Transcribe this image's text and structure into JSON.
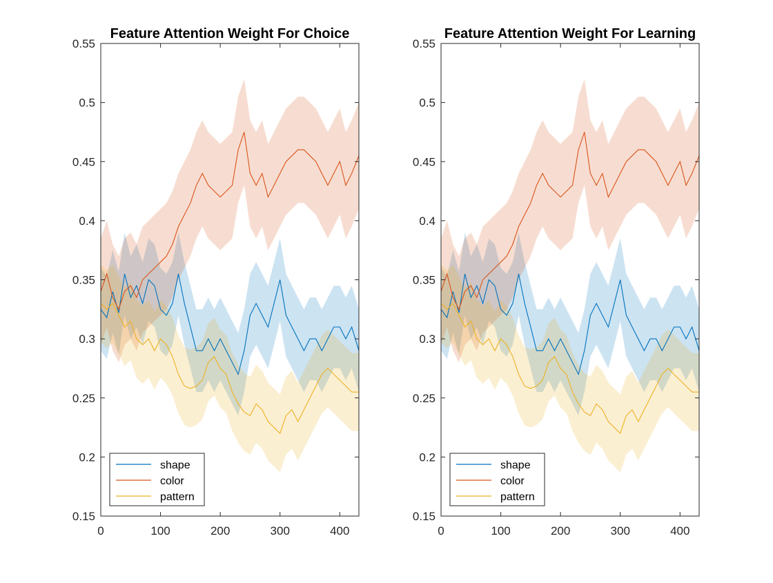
{
  "colors": {
    "shape": "#0072BD",
    "color": "#D95319",
    "pattern": "#EDB120",
    "axis": "#262626",
    "background": "#ffffff"
  },
  "chart_data": [
    {
      "type": "line",
      "title": "Feature Attention Weight For Choice",
      "xlabel": "",
      "ylabel": "",
      "xlim": [
        0,
        432
      ],
      "ylim": [
        0.15,
        0.55
      ],
      "x_ticks": [
        0,
        100,
        200,
        300,
        400
      ],
      "x_tick_labels": [
        "0",
        "100",
        "200",
        "300",
        "400"
      ],
      "y_ticks": [
        0.15,
        0.2,
        0.25,
        0.3,
        0.35,
        0.4,
        0.45,
        0.5,
        0.55
      ],
      "y_tick_labels": [
        "0.15",
        "0.2",
        "0.25",
        "0.3",
        "0.35",
        "0.4",
        "0.45",
        "0.5",
        "0.55"
      ],
      "grid": false,
      "legend_position": "bottom-left",
      "series": [
        {
          "name": "shape",
          "color": "#0072BD",
          "x": [
            0,
            10,
            20,
            30,
            40,
            50,
            60,
            70,
            80,
            90,
            100,
            110,
            120,
            130,
            140,
            150,
            160,
            170,
            180,
            190,
            200,
            210,
            220,
            230,
            240,
            250,
            260,
            270,
            280,
            290,
            300,
            310,
            320,
            330,
            340,
            350,
            360,
            370,
            380,
            390,
            400,
            410,
            420,
            432
          ],
          "y": [
            0.325,
            0.318,
            0.34,
            0.322,
            0.355,
            0.335,
            0.345,
            0.33,
            0.35,
            0.345,
            0.325,
            0.32,
            0.33,
            0.355,
            0.33,
            0.31,
            0.29,
            0.29,
            0.3,
            0.29,
            0.3,
            0.29,
            0.28,
            0.27,
            0.29,
            0.32,
            0.33,
            0.32,
            0.31,
            0.33,
            0.35,
            0.32,
            0.31,
            0.3,
            0.29,
            0.3,
            0.3,
            0.29,
            0.3,
            0.31,
            0.31,
            0.3,
            0.31,
            0.29
          ],
          "ci_half_width": 0.035
        },
        {
          "name": "color",
          "color": "#D95319",
          "x": [
            0,
            10,
            20,
            30,
            40,
            50,
            60,
            70,
            80,
            90,
            100,
            110,
            120,
            130,
            140,
            150,
            160,
            170,
            180,
            190,
            200,
            210,
            220,
            230,
            240,
            250,
            260,
            270,
            280,
            290,
            300,
            310,
            320,
            330,
            340,
            350,
            360,
            370,
            380,
            390,
            400,
            410,
            420,
            432
          ],
          "y": [
            0.34,
            0.355,
            0.335,
            0.325,
            0.34,
            0.345,
            0.335,
            0.35,
            0.355,
            0.36,
            0.365,
            0.37,
            0.38,
            0.395,
            0.405,
            0.415,
            0.43,
            0.44,
            0.43,
            0.425,
            0.42,
            0.425,
            0.43,
            0.46,
            0.475,
            0.44,
            0.43,
            0.44,
            0.42,
            0.43,
            0.44,
            0.45,
            0.455,
            0.46,
            0.46,
            0.455,
            0.45,
            0.44,
            0.43,
            0.44,
            0.45,
            0.43,
            0.44,
            0.455
          ],
          "ci_half_width": 0.045
        },
        {
          "name": "pattern",
          "color": "#EDB120",
          "x": [
            0,
            10,
            20,
            30,
            40,
            50,
            60,
            70,
            80,
            90,
            100,
            110,
            120,
            130,
            140,
            150,
            160,
            170,
            180,
            190,
            200,
            210,
            220,
            230,
            240,
            250,
            260,
            270,
            280,
            290,
            300,
            310,
            320,
            330,
            340,
            350,
            360,
            370,
            380,
            390,
            400,
            410,
            420,
            432
          ],
          "y": [
            0.33,
            0.325,
            0.33,
            0.32,
            0.31,
            0.315,
            0.3,
            0.295,
            0.3,
            0.29,
            0.3,
            0.295,
            0.285,
            0.27,
            0.26,
            0.258,
            0.26,
            0.265,
            0.28,
            0.285,
            0.275,
            0.27,
            0.255,
            0.245,
            0.238,
            0.235,
            0.245,
            0.24,
            0.23,
            0.225,
            0.22,
            0.235,
            0.24,
            0.23,
            0.24,
            0.25,
            0.26,
            0.27,
            0.275,
            0.27,
            0.265,
            0.26,
            0.255,
            0.255
          ],
          "ci_half_width": 0.033
        }
      ]
    },
    {
      "type": "line",
      "title": "Feature Attention Weight For Learning",
      "xlabel": "",
      "ylabel": "",
      "xlim": [
        0,
        432
      ],
      "ylim": [
        0.15,
        0.55
      ],
      "x_ticks": [
        0,
        100,
        200,
        300,
        400
      ],
      "x_tick_labels": [
        "0",
        "100",
        "200",
        "300",
        "400"
      ],
      "y_ticks": [
        0.15,
        0.2,
        0.25,
        0.3,
        0.35,
        0.4,
        0.45,
        0.5,
        0.55
      ],
      "y_tick_labels": [
        "0.15",
        "0.2",
        "0.25",
        "0.3",
        "0.35",
        "0.4",
        "0.45",
        "0.5",
        "0.55"
      ],
      "grid": false,
      "legend_position": "bottom-left",
      "series": [
        {
          "name": "shape",
          "color": "#0072BD",
          "x": [
            0,
            10,
            20,
            30,
            40,
            50,
            60,
            70,
            80,
            90,
            100,
            110,
            120,
            130,
            140,
            150,
            160,
            170,
            180,
            190,
            200,
            210,
            220,
            230,
            240,
            250,
            260,
            270,
            280,
            290,
            300,
            310,
            320,
            330,
            340,
            350,
            360,
            370,
            380,
            390,
            400,
            410,
            420,
            432
          ],
          "y": [
            0.325,
            0.318,
            0.34,
            0.322,
            0.355,
            0.335,
            0.345,
            0.33,
            0.35,
            0.345,
            0.325,
            0.32,
            0.33,
            0.355,
            0.33,
            0.31,
            0.29,
            0.29,
            0.3,
            0.29,
            0.3,
            0.29,
            0.28,
            0.27,
            0.29,
            0.32,
            0.33,
            0.32,
            0.31,
            0.33,
            0.35,
            0.32,
            0.31,
            0.3,
            0.29,
            0.3,
            0.3,
            0.29,
            0.3,
            0.31,
            0.31,
            0.3,
            0.31,
            0.29
          ],
          "ci_half_width": 0.035
        },
        {
          "name": "color",
          "color": "#D95319",
          "x": [
            0,
            10,
            20,
            30,
            40,
            50,
            60,
            70,
            80,
            90,
            100,
            110,
            120,
            130,
            140,
            150,
            160,
            170,
            180,
            190,
            200,
            210,
            220,
            230,
            240,
            250,
            260,
            270,
            280,
            290,
            300,
            310,
            320,
            330,
            340,
            350,
            360,
            370,
            380,
            390,
            400,
            410,
            420,
            432
          ],
          "y": [
            0.34,
            0.355,
            0.335,
            0.325,
            0.34,
            0.345,
            0.335,
            0.35,
            0.355,
            0.36,
            0.365,
            0.37,
            0.38,
            0.395,
            0.405,
            0.415,
            0.43,
            0.44,
            0.43,
            0.425,
            0.42,
            0.425,
            0.43,
            0.46,
            0.475,
            0.44,
            0.43,
            0.44,
            0.42,
            0.43,
            0.44,
            0.45,
            0.455,
            0.46,
            0.46,
            0.455,
            0.45,
            0.44,
            0.43,
            0.44,
            0.45,
            0.43,
            0.44,
            0.455
          ],
          "ci_half_width": 0.045
        },
        {
          "name": "pattern",
          "color": "#EDB120",
          "x": [
            0,
            10,
            20,
            30,
            40,
            50,
            60,
            70,
            80,
            90,
            100,
            110,
            120,
            130,
            140,
            150,
            160,
            170,
            180,
            190,
            200,
            210,
            220,
            230,
            240,
            250,
            260,
            270,
            280,
            290,
            300,
            310,
            320,
            330,
            340,
            350,
            360,
            370,
            380,
            390,
            400,
            410,
            420,
            432
          ],
          "y": [
            0.33,
            0.325,
            0.33,
            0.32,
            0.31,
            0.315,
            0.3,
            0.295,
            0.3,
            0.29,
            0.3,
            0.295,
            0.285,
            0.27,
            0.26,
            0.258,
            0.26,
            0.265,
            0.28,
            0.285,
            0.275,
            0.27,
            0.255,
            0.245,
            0.238,
            0.235,
            0.245,
            0.24,
            0.23,
            0.225,
            0.22,
            0.235,
            0.24,
            0.23,
            0.24,
            0.25,
            0.26,
            0.27,
            0.275,
            0.27,
            0.265,
            0.26,
            0.255,
            0.255
          ],
          "ci_half_width": 0.033
        }
      ]
    }
  ]
}
